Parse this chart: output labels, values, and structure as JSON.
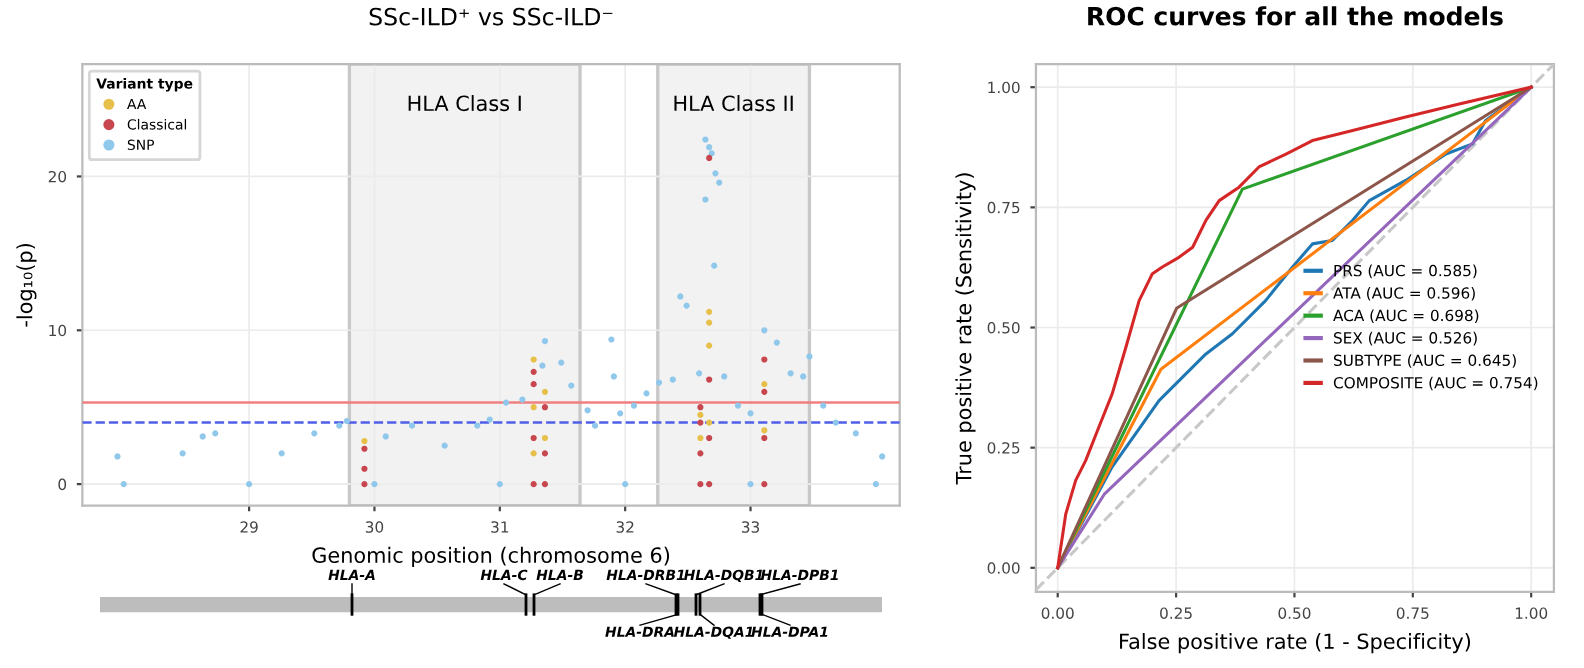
{
  "chart_data": [
    {
      "type": "scatter",
      "title": "SSc-ILD⁺ vs SSc-ILD⁻",
      "xlabel": "Genomic position (chromosome 6)",
      "ylabel": "-log₁₀(p)",
      "legend_title": "Variant type",
      "legend": "top left",
      "grid": true,
      "marker": "circle",
      "xlim": [
        27.67,
        34.19
      ],
      "ylim": [
        -1.4,
        27.3
      ],
      "xticks": [
        29,
        30,
        31,
        32,
        33
      ],
      "yticks": [
        0,
        10,
        20
      ],
      "bands": [
        {
          "axis": "x",
          "from": 29.8,
          "to": 31.64,
          "label": "HLA Class I",
          "color": "#f2f2f2"
        },
        {
          "axis": "x",
          "from": 32.26,
          "to": 33.47,
          "label": "HLA Class II",
          "color": "#f2f2f2"
        }
      ],
      "ref_lines": [
        {
          "axis": "y",
          "value": 5.3,
          "color": "#f08080",
          "line_style": "solid"
        },
        {
          "axis": "y",
          "value": 4.0,
          "color": "#4f5fe8",
          "line_style": "dashed"
        }
      ],
      "series": [
        {
          "name": "AA",
          "color": "#e6c04a",
          "x": [
            29.92,
            31.27,
            31.27,
            31.27,
            31.36,
            31.36,
            32.6,
            32.6,
            32.67,
            32.67,
            32.67,
            32.67,
            33.11,
            33.11
          ],
          "values": [
            2.8,
            8.1,
            5,
            2,
            6.0,
            3,
            4.5,
            3,
            11.2,
            10.5,
            9,
            4,
            6.5,
            3.5
          ]
        },
        {
          "name": "Classical",
          "color": "#c8474f",
          "x": [
            29.92,
            29.92,
            29.92,
            31.27,
            31.27,
            31.27,
            31.27,
            31.36,
            31.36,
            31.36,
            32.6,
            32.6,
            32.6,
            32.6,
            32.67,
            32.67,
            32.67,
            32.67,
            33.11,
            33.11,
            33.11,
            33.11
          ],
          "values": [
            0,
            1,
            2.3,
            0,
            3,
            6.5,
            7.3,
            0,
            2,
            5,
            0,
            2,
            4,
            5,
            0,
            3,
            6.8,
            21.2,
            0,
            3,
            6,
            8.1
          ]
        },
        {
          "name": "SNP",
          "color": "#90c8ec",
          "x": [
            27.95,
            28.47,
            28.63,
            28.73,
            29.26,
            29.52,
            29.72,
            29.78,
            30.09,
            30.3,
            30.56,
            30.82,
            30.92,
            31.05,
            31.18,
            31.34,
            31.36,
            31.49,
            31.57,
            31.7,
            31.76,
            31.89,
            31.91,
            31.96,
            32.07,
            32.17,
            32.27,
            32.38,
            32.44,
            32.49,
            32.59,
            32.64,
            32.67,
            32.69,
            32.72,
            32.75,
            32.71,
            32.64,
            32.79,
            32.9,
            33.0,
            33.11,
            33.21,
            33.32,
            33.42,
            33.47,
            33.58,
            33.68,
            33.84,
            34.05,
            28.0,
            29.0,
            30.0,
            31.0,
            32.0,
            33.0,
            34.0
          ],
          "values": [
            1.8,
            2.0,
            3.1,
            3.3,
            2.0,
            3.3,
            3.8,
            4.1,
            3.1,
            3.8,
            2.5,
            3.8,
            4.2,
            5.3,
            5.5,
            7.7,
            9.3,
            7.9,
            6.4,
            4.8,
            3.8,
            9.4,
            7.0,
            4.6,
            5.1,
            5.9,
            6.6,
            6.8,
            12.2,
            11.6,
            7.2,
            22.4,
            21.9,
            21.5,
            20.2,
            19.6,
            14.2,
            18.5,
            7.0,
            5.1,
            4.6,
            10.0,
            9.2,
            7.2,
            7.0,
            8.3,
            5.1,
            4.0,
            3.3,
            1.8,
            0,
            0,
            0,
            0,
            0,
            0,
            0
          ]
        }
      ]
    },
    {
      "type": "other",
      "annotations": [
        "HLA-A",
        "HLA-C",
        "HLA-B",
        "HLA-DRB1",
        "HLA-DQB1",
        "HLA-DPB1",
        "HLA-DRA",
        "HLA-DQA1",
        "HLA-DPA1"
      ]
    },
    {
      "type": "line",
      "title": "ROC curves for all the models",
      "xlabel": "False positive rate (1 - Specificity)",
      "ylabel": "True positive rate (Sensitivity)",
      "legend": "right",
      "grid": true,
      "marker": "none",
      "xlim": [
        -0.046,
        1.048
      ],
      "ylim": [
        -0.05,
        1.048
      ],
      "xticks": [
        {
          "value": 0,
          "label": "0.00"
        },
        {
          "value": 0.25,
          "label": "0.25"
        },
        {
          "value": 0.5,
          "label": "0.50"
        },
        {
          "value": 0.75,
          "label": "0.75"
        },
        {
          "value": 1,
          "label": "1.00"
        }
      ],
      "yticks": [
        {
          "value": 0,
          "label": "0.00"
        },
        {
          "value": 0.25,
          "label": "0.25"
        },
        {
          "value": 0.5,
          "label": "0.50"
        },
        {
          "value": 0.75,
          "label": "0.75"
        },
        {
          "value": 1,
          "label": "1.00"
        }
      ],
      "series": [
        {
          "color": "#c8c8c8",
          "line_style": "dashed",
          "x": [
            -0.046,
            1.048
          ],
          "values": [
            -0.046,
            1.048
          ]
        },
        {
          "name": "PRS (AUC = 0.585)",
          "color": "#1f77b4",
          "x": [
            0,
            0.115,
            0.214,
            0.313,
            0.369,
            0.439,
            0.496,
            0.538,
            0.58,
            0.623,
            0.658,
            0.735,
            0.82,
            0.876,
            0.904,
            1
          ],
          "values": [
            0,
            0.21,
            0.348,
            0.445,
            0.487,
            0.556,
            0.626,
            0.674,
            0.681,
            0.723,
            0.764,
            0.806,
            0.861,
            0.882,
            0.931,
            1
          ]
        },
        {
          "name": "ATA (AUC = 0.596)",
          "color": "#ff7f0e",
          "x": [
            0,
            0.218,
            1
          ],
          "values": [
            0,
            0.413,
            1
          ]
        },
        {
          "name": "ACA (AUC = 0.698)",
          "color": "#2ca02c",
          "x": [
            0,
            0.39,
            1
          ],
          "values": [
            0,
            0.788,
            1
          ]
        },
        {
          "name": "SEX (AUC = 0.526)",
          "color": "#9467bd",
          "x": [
            0,
            0.099,
            1
          ],
          "values": [
            0,
            0.154,
            1
          ]
        },
        {
          "name": "SUBTYPE (AUC = 0.645)",
          "color": "#8c564b",
          "x": [
            0,
            0.251,
            1
          ],
          "values": [
            0,
            0.54,
            1
          ]
        },
        {
          "name": "COMPOSITE (AUC = 0.754)",
          "color": "#d62728",
          "x": [
            0,
            0.017,
            0.038,
            0.059,
            0.087,
            0.115,
            0.144,
            0.172,
            0.2,
            0.221,
            0.256,
            0.285,
            0.313,
            0.341,
            0.383,
            0.425,
            0.482,
            0.538,
            0.623,
            0.735,
            0.848,
            1
          ],
          "values": [
            0,
            0.112,
            0.182,
            0.223,
            0.293,
            0.362,
            0.459,
            0.556,
            0.612,
            0.626,
            0.646,
            0.667,
            0.723,
            0.764,
            0.792,
            0.834,
            0.861,
            0.889,
            0.91,
            0.938,
            0.965,
            1
          ]
        }
      ]
    }
  ]
}
